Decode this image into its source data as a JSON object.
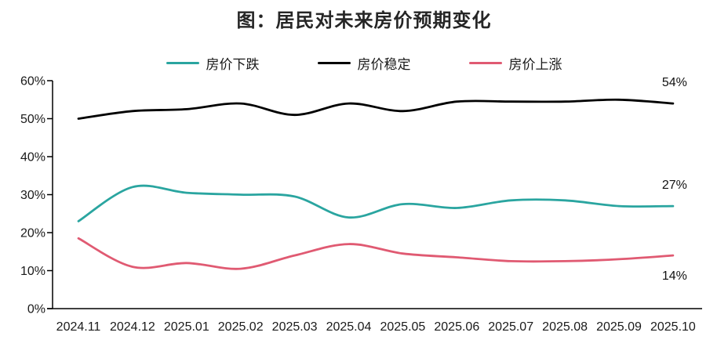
{
  "chart_data": {
    "type": "line",
    "title": "图：居民对未来房价预期变化",
    "xlabel": "",
    "ylabel": "",
    "x": [
      "2024.11",
      "2024.12",
      "2025.01",
      "2025.02",
      "2025.03",
      "2025.04",
      "2025.05",
      "2025.06",
      "2025.07",
      "2025.08",
      "2025.09",
      "2025.10"
    ],
    "ylim": [
      0,
      60
    ],
    "yticks": [
      "0%",
      "10%",
      "20%",
      "30%",
      "40%",
      "50%",
      "60%"
    ],
    "grid": false,
    "legend_position": "top",
    "series": [
      {
        "name": "房价下跌",
        "color": "#2AA5A0",
        "values": [
          23,
          32,
          30.5,
          30,
          29.5,
          24,
          27.5,
          26.5,
          28.5,
          28.5,
          27,
          27
        ],
        "end_label": "27%",
        "end_label_position": "above"
      },
      {
        "name": "房价稳定",
        "color": "#000000",
        "values": [
          50,
          52,
          52.5,
          54,
          51,
          54,
          52,
          54.5,
          54.5,
          54.5,
          55,
          54
        ],
        "end_label": "54%",
        "end_label_position": "above"
      },
      {
        "name": "房价上涨",
        "color": "#E05A72",
        "values": [
          18.5,
          11,
          12,
          10.5,
          14,
          17,
          14.5,
          13.5,
          12.5,
          12.5,
          13,
          14
        ],
        "end_label": "14%",
        "end_label_position": "below"
      }
    ]
  }
}
